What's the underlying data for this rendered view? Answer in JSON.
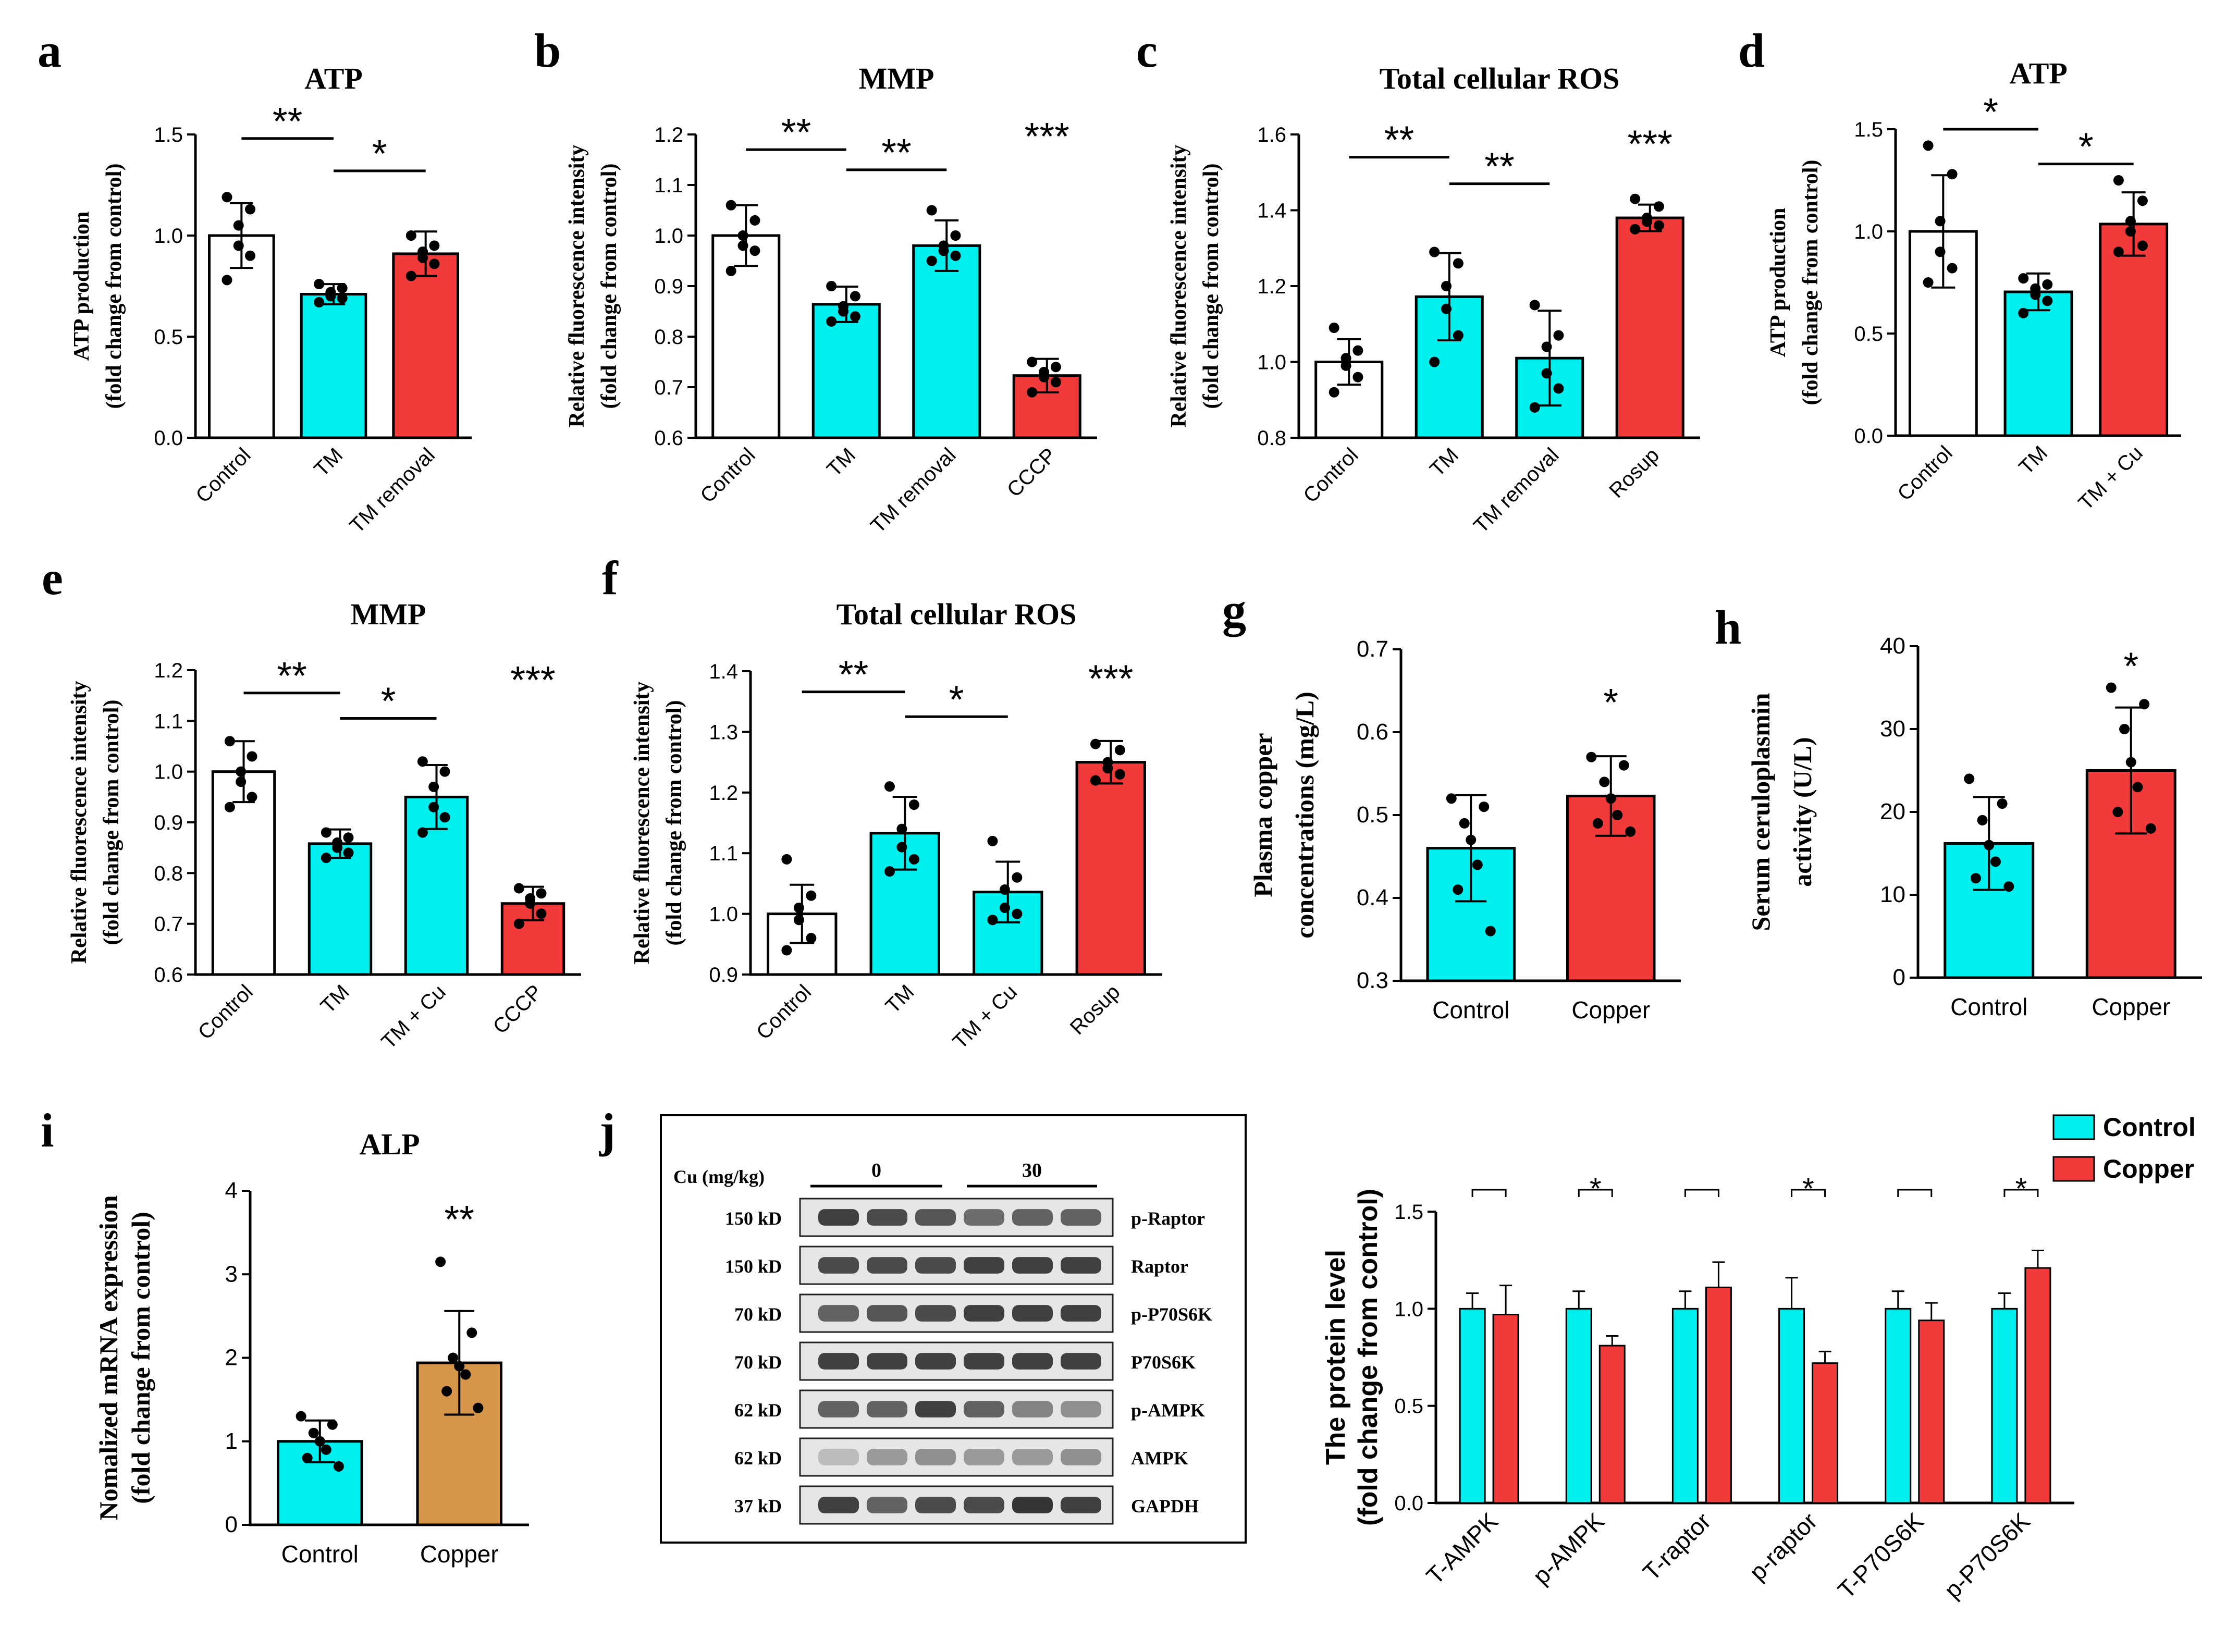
{
  "colors": {
    "white": "#ffffff",
    "cyan": "#00f0f0",
    "red": "#f23a3a",
    "tan": "#d7954a",
    "black": "#000000"
  },
  "chart_data": [
    {
      "type": "bar",
      "panel": "a",
      "title": "ATP",
      "ylabel": [
        "ATP production",
        "(fold change from control)"
      ],
      "categories": [
        "Control",
        "TM",
        "TM removal"
      ],
      "values": [
        1.0,
        0.71,
        0.91
      ],
      "errors": [
        0.16,
        0.05,
        0.11
      ],
      "fills": [
        "white",
        "cyan",
        "red"
      ],
      "ylim": [
        0,
        1.5
      ],
      "ticks": [
        "0.0",
        "0.5",
        "1.0",
        "1.5"
      ],
      "points": [
        [
          1.19,
          1.13,
          1.05,
          0.95,
          0.9,
          0.78
        ],
        [
          0.76,
          0.74,
          0.72,
          0.7,
          0.69,
          0.67
        ],
        [
          1.0,
          0.95,
          0.92,
          0.89,
          0.86,
          0.8
        ]
      ],
      "sig": [
        {
          "from": 0,
          "to": 1,
          "y": 1.48,
          "label": "**"
        },
        {
          "from": 1,
          "to": 2,
          "y": 1.32,
          "label": "*"
        }
      ]
    },
    {
      "type": "bar",
      "panel": "b",
      "title": "MMP",
      "ylabel": [
        "Relative fluorescence intensity",
        "(fold change from control)"
      ],
      "categories": [
        "Control",
        "TM",
        "TM removal",
        "CCCP"
      ],
      "values": [
        1.0,
        0.864,
        0.98,
        0.723
      ],
      "errors": [
        0.06,
        0.035,
        0.05,
        0.033
      ],
      "fills": [
        "white",
        "cyan",
        "cyan",
        "red"
      ],
      "ylim": [
        0.6,
        1.2
      ],
      "ticks": [
        "0.6",
        "0.7",
        "0.8",
        "0.9",
        "1.0",
        "1.1",
        "1.2"
      ],
      "points": [
        [
          1.06,
          1.03,
          1.0,
          0.98,
          0.97,
          0.93
        ],
        [
          0.9,
          0.88,
          0.86,
          0.85,
          0.84,
          0.83
        ],
        [
          1.05,
          1.0,
          0.98,
          0.97,
          0.96,
          0.95
        ],
        [
          0.75,
          0.74,
          0.73,
          0.72,
          0.71,
          0.69
        ]
      ],
      "sig": [
        {
          "from": 0,
          "to": 1,
          "y": 1.17,
          "label": "**"
        },
        {
          "from": 1,
          "to": 2,
          "y": 1.13,
          "label": "**"
        },
        {
          "single": 3,
          "y": 1.17,
          "label": "***"
        }
      ]
    },
    {
      "type": "bar",
      "panel": "c",
      "title": "Total cellular ROS",
      "ylabel": [
        "Relative fluorescence intensity",
        "(fold change from control)"
      ],
      "categories": [
        "Control",
        "TM",
        "TM removal",
        "Rosup"
      ],
      "values": [
        1.0,
        1.172,
        1.01,
        1.38
      ],
      "errors": [
        0.06,
        0.115,
        0.125,
        0.035
      ],
      "fills": [
        "white",
        "cyan",
        "cyan",
        "red"
      ],
      "ylim": [
        0.8,
        1.6
      ],
      "ticks": [
        "0.8",
        "1.0",
        "1.2",
        "1.4",
        "1.6"
      ],
      "points": [
        [
          1.09,
          1.03,
          1.01,
          0.99,
          0.96,
          0.92
        ],
        [
          1.29,
          1.26,
          1.2,
          1.14,
          1.07,
          1.0
        ],
        [
          1.15,
          1.07,
          1.04,
          0.97,
          0.93,
          0.88
        ],
        [
          1.43,
          1.41,
          1.38,
          1.37,
          1.36,
          1.35
        ]
      ],
      "sig": [
        {
          "from": 0,
          "to": 1,
          "y": 1.54,
          "label": "**"
        },
        {
          "from": 1,
          "to": 2,
          "y": 1.47,
          "label": "**"
        },
        {
          "single": 3,
          "y": 1.54,
          "label": "***"
        }
      ]
    },
    {
      "type": "bar",
      "panel": "d",
      "title": "ATP",
      "ylabel": [
        "ATP production",
        "(fold change from control)"
      ],
      "categories": [
        "Control",
        "TM",
        "TM + Cu"
      ],
      "values": [
        1.0,
        0.704,
        1.036
      ],
      "errors": [
        0.275,
        0.09,
        0.155
      ],
      "fills": [
        "white",
        "cyan",
        "red"
      ],
      "ylim": [
        0,
        1.5
      ],
      "ticks": [
        "0.0",
        "0.5",
        "1.0",
        "1.5"
      ],
      "points": [
        [
          1.42,
          1.28,
          1.05,
          0.9,
          0.82,
          0.75
        ],
        [
          0.77,
          0.74,
          0.72,
          0.69,
          0.66,
          0.6
        ],
        [
          1.25,
          1.15,
          1.05,
          1.0,
          0.93,
          0.9
        ]
      ],
      "sig": [
        {
          "from": 0,
          "to": 1,
          "y": 1.5,
          "label": "*"
        },
        {
          "from": 1,
          "to": 2,
          "y": 1.33,
          "label": "*"
        }
      ]
    },
    {
      "type": "bar",
      "panel": "e",
      "title": "MMP",
      "ylabel": [
        "Relative fluorescence intensity",
        "(fold change from control)"
      ],
      "categories": [
        "Control",
        "TM",
        "TM + Cu",
        "CCCP"
      ],
      "values": [
        1.0,
        0.858,
        0.95,
        0.74
      ],
      "errors": [
        0.06,
        0.028,
        0.063,
        0.033
      ],
      "fills": [
        "white",
        "cyan",
        "cyan",
        "red"
      ],
      "ylim": [
        0.6,
        1.2
      ],
      "ticks": [
        "0.6",
        "0.7",
        "0.8",
        "0.9",
        "1.0",
        "1.1",
        "1.2"
      ],
      "points": [
        [
          1.06,
          1.03,
          1.0,
          0.98,
          0.95,
          0.93
        ],
        [
          0.88,
          0.87,
          0.86,
          0.85,
          0.84,
          0.83
        ],
        [
          1.02,
          1.0,
          0.97,
          0.93,
          0.91,
          0.88
        ],
        [
          0.77,
          0.76,
          0.75,
          0.74,
          0.72,
          0.7
        ]
      ],
      "sig": [
        {
          "from": 0,
          "to": 1,
          "y": 1.155,
          "label": "**"
        },
        {
          "from": 1,
          "to": 2,
          "y": 1.105,
          "label": "*"
        },
        {
          "single": 3,
          "y": 1.155,
          "label": "***"
        }
      ]
    },
    {
      "type": "bar",
      "panel": "f",
      "title": "Total cellular ROS",
      "ylabel": [
        "Relative fluorescence intensity",
        "(fold change from control)"
      ],
      "categories": [
        "Control",
        "TM",
        "TM + Cu",
        "Rosup"
      ],
      "values": [
        1.0,
        1.133,
        1.036,
        1.25
      ],
      "errors": [
        0.048,
        0.06,
        0.05,
        0.035
      ],
      "fills": [
        "white",
        "cyan",
        "cyan",
        "red"
      ],
      "ylim": [
        0.9,
        1.4
      ],
      "ticks": [
        "0.9",
        "1.0",
        "1.1",
        "1.2",
        "1.3",
        "1.4"
      ],
      "points": [
        [
          1.09,
          1.03,
          1.01,
          0.99,
          0.96,
          0.94
        ],
        [
          1.21,
          1.18,
          1.14,
          1.11,
          1.09,
          1.07
        ],
        [
          1.12,
          1.06,
          1.04,
          1.01,
          1.0,
          0.99
        ],
        [
          1.28,
          1.27,
          1.25,
          1.24,
          1.23,
          1.22
        ]
      ],
      "sig": [
        {
          "from": 0,
          "to": 1,
          "y": 1.366,
          "label": "**"
        },
        {
          "from": 1,
          "to": 2,
          "y": 1.325,
          "label": "*"
        },
        {
          "single": 3,
          "y": 1.366,
          "label": "***"
        }
      ]
    },
    {
      "type": "bar",
      "panel": "g",
      "title": "",
      "ylabel": [
        "Plasma copper",
        "concentrations (mg/L)"
      ],
      "categories": [
        "Control",
        "Copper"
      ],
      "values": [
        0.46,
        0.523
      ],
      "errors": [
        0.064,
        0.048
      ],
      "fills": [
        "cyan",
        "red"
      ],
      "ylim": [
        0.3,
        0.7
      ],
      "ticks": [
        "0.3",
        "0.4",
        "0.5",
        "0.6",
        "0.7"
      ],
      "points": [
        [
          0.52,
          0.51,
          0.49,
          0.47,
          0.44,
          0.41,
          0.36
        ],
        [
          0.57,
          0.56,
          0.54,
          0.52,
          0.5,
          0.49,
          0.48
        ]
      ],
      "sig": [
        {
          "single": 1,
          "y": 0.62,
          "label": "*"
        }
      ]
    },
    {
      "type": "bar",
      "panel": "h",
      "title": "",
      "ylabel": [
        "Serum ceruloplasmin",
        "activity (U/L)"
      ],
      "categories": [
        "Control",
        "Copper"
      ],
      "values": [
        16.2,
        25.0
      ],
      "errors": [
        5.6,
        7.6
      ],
      "fills": [
        "cyan",
        "red"
      ],
      "ylim": [
        0,
        40
      ],
      "ticks": [
        "0",
        "10",
        "20",
        "30",
        "40"
      ],
      "points": [
        [
          24,
          21,
          19,
          16,
          14,
          12,
          11
        ],
        [
          35,
          33,
          30,
          26,
          23,
          20,
          18
        ]
      ],
      "sig": [
        {
          "single": 1,
          "y": 36,
          "label": "*"
        }
      ]
    },
    {
      "type": "bar",
      "panel": "i",
      "title": "ALP",
      "ylabel": [
        "Nomalized mRNA expression",
        "(fold change from control)"
      ],
      "categories": [
        "Control",
        "Copper"
      ],
      "values": [
        1.0,
        1.94
      ],
      "errors": [
        0.25,
        0.62
      ],
      "fills": [
        "cyan",
        "tan"
      ],
      "ylim": [
        0,
        4
      ],
      "ticks": [
        "0",
        "1",
        "2",
        "3",
        "4"
      ],
      "points": [
        [
          1.3,
          1.2,
          1.1,
          1.0,
          0.9,
          0.8,
          0.7
        ],
        [
          3.15,
          2.3,
          2.0,
          1.9,
          1.8,
          1.6,
          1.4
        ]
      ],
      "sig": [
        {
          "single": 1,
          "y": 3.5,
          "label": "**"
        }
      ]
    },
    {
      "type": "bar",
      "panel": "j",
      "title": "",
      "ylabel": [
        "The protein level",
        "(fold change from control)"
      ],
      "categories": [
        "T-AMPK",
        "p-AMPK",
        "T-raptor",
        "p-raptor",
        "T-P70S6K",
        "p-P70S6K"
      ],
      "series": [
        {
          "name": "Control",
          "values": [
            1.0,
            1.0,
            1.0,
            1.0,
            1.0,
            1.0
          ],
          "errors": [
            0.08,
            0.09,
            0.09,
            0.16,
            0.09,
            0.08
          ]
        },
        {
          "name": "Copper",
          "values": [
            0.97,
            0.81,
            1.11,
            0.72,
            0.94,
            1.21
          ],
          "errors": [
            0.15,
            0.05,
            0.13,
            0.06,
            0.09,
            0.09
          ]
        }
      ],
      "ylim": [
        0,
        1.5
      ],
      "ticks": [
        "0.0",
        "0.5",
        "1.0",
        "1.5"
      ],
      "sig_labels": [
        "",
        "*",
        "",
        "*",
        "",
        "*"
      ]
    }
  ],
  "panel_letters": [
    "a",
    "b",
    "c",
    "d",
    "e",
    "f",
    "g",
    "h",
    "i",
    "j"
  ],
  "blot": {
    "header": "Cu (mg/kg)",
    "groups": [
      "0",
      "30"
    ],
    "rows": [
      {
        "size": "150 kD",
        "name": "p-Raptor",
        "intensity": [
          0.85,
          0.8,
          0.75,
          0.65,
          0.7,
          0.7
        ]
      },
      {
        "size": "150 kD",
        "name": "Raptor",
        "intensity": [
          0.8,
          0.8,
          0.8,
          0.85,
          0.85,
          0.85
        ]
      },
      {
        "size": "70 kD",
        "name": "p-P70S6K",
        "intensity": [
          0.7,
          0.75,
          0.8,
          0.85,
          0.85,
          0.85
        ]
      },
      {
        "size": "70 kD",
        "name": "P70S6K",
        "intensity": [
          0.85,
          0.85,
          0.85,
          0.85,
          0.85,
          0.85
        ]
      },
      {
        "size": "62 kD",
        "name": "p-AMPK",
        "intensity": [
          0.7,
          0.7,
          0.85,
          0.7,
          0.55,
          0.5
        ]
      },
      {
        "size": "62 kD",
        "name": "AMPK",
        "intensity": [
          0.3,
          0.45,
          0.5,
          0.45,
          0.45,
          0.5
        ]
      },
      {
        "size": "37 kD",
        "name": "GAPDH",
        "intensity": [
          0.85,
          0.7,
          0.8,
          0.8,
          0.9,
          0.85
        ]
      }
    ]
  }
}
